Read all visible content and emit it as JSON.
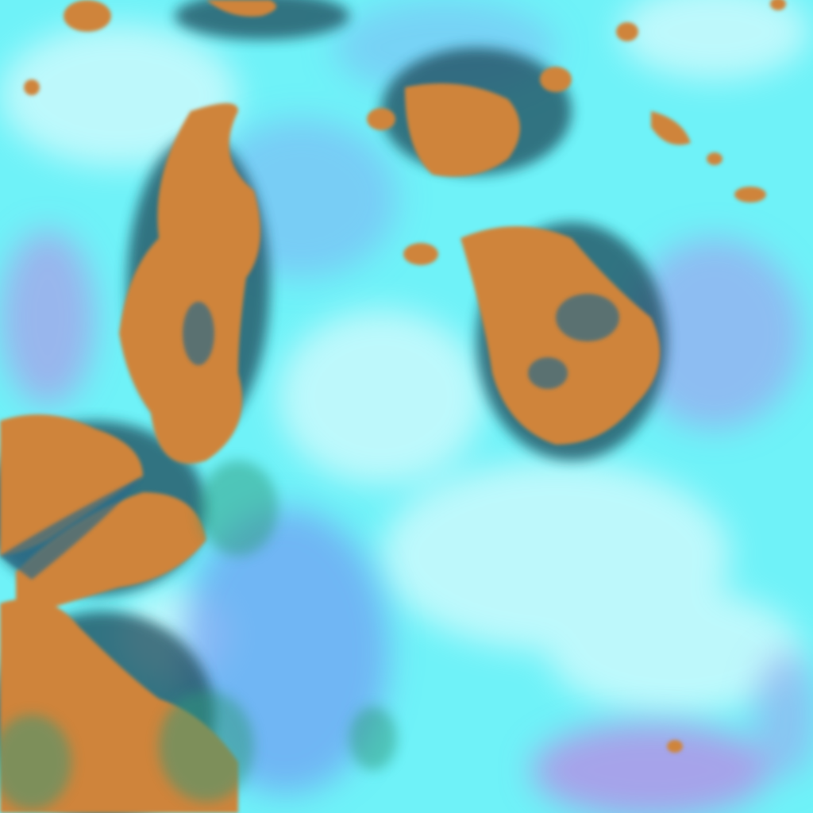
{
  "image": {
    "kind": "false-color satellite imagery",
    "colors": {
      "cloud_cyan": "#6ff2f8",
      "cloud_white": "#d8fbfd",
      "ice_blue": "#6f9cf2",
      "violet": "#b48ee6",
      "land_orange": "#cf843a",
      "land_dark": "#1c4a5a",
      "green_edge": "#2f9a7a"
    }
  }
}
